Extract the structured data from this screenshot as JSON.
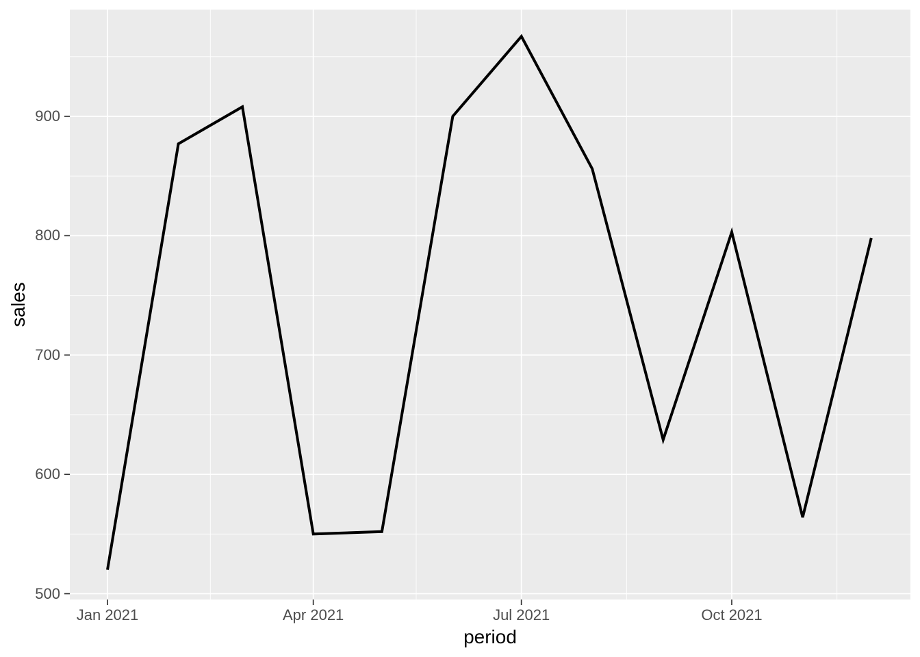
{
  "chart_data": {
    "type": "line",
    "title": "",
    "xlabel": "period",
    "ylabel": "sales",
    "x": [
      "2021-01-01",
      "2021-02-01",
      "2021-03-01",
      "2021-04-01",
      "2021-05-01",
      "2021-06-01",
      "2021-07-01",
      "2021-08-01",
      "2021-09-01",
      "2021-10-01",
      "2021-11-01",
      "2021-12-01"
    ],
    "series": [
      {
        "name": "sales",
        "values": [
          520,
          877,
          908,
          550,
          552,
          900,
          967,
          856,
          629,
          803,
          564,
          798
        ]
      }
    ],
    "x_major_breaks": [
      {
        "date": "2021-01-01",
        "label": "Jan 2021"
      },
      {
        "date": "2021-04-01",
        "label": "Apr 2021"
      },
      {
        "date": "2021-07-01",
        "label": "Jul 2021"
      },
      {
        "date": "2021-10-01",
        "label": "Oct 2021"
      }
    ],
    "x_minor_breaks": [
      "2021-02-15",
      "2021-05-16",
      "2021-08-16",
      "2021-11-16"
    ],
    "y_major_breaks": [
      500,
      600,
      700,
      800,
      900
    ],
    "y_minor_breaks": [
      550,
      650,
      750,
      850,
      950
    ],
    "ylim": [
      497,
      989
    ],
    "grid": true,
    "legend_position": "none",
    "colors": {
      "panel_background": "#EBEBEB",
      "gridline": "#FFFFFF",
      "line": "#000000",
      "axis_text": "#4D4D4D",
      "axis_title": "#000000",
      "tick_mark": "#333333"
    }
  }
}
